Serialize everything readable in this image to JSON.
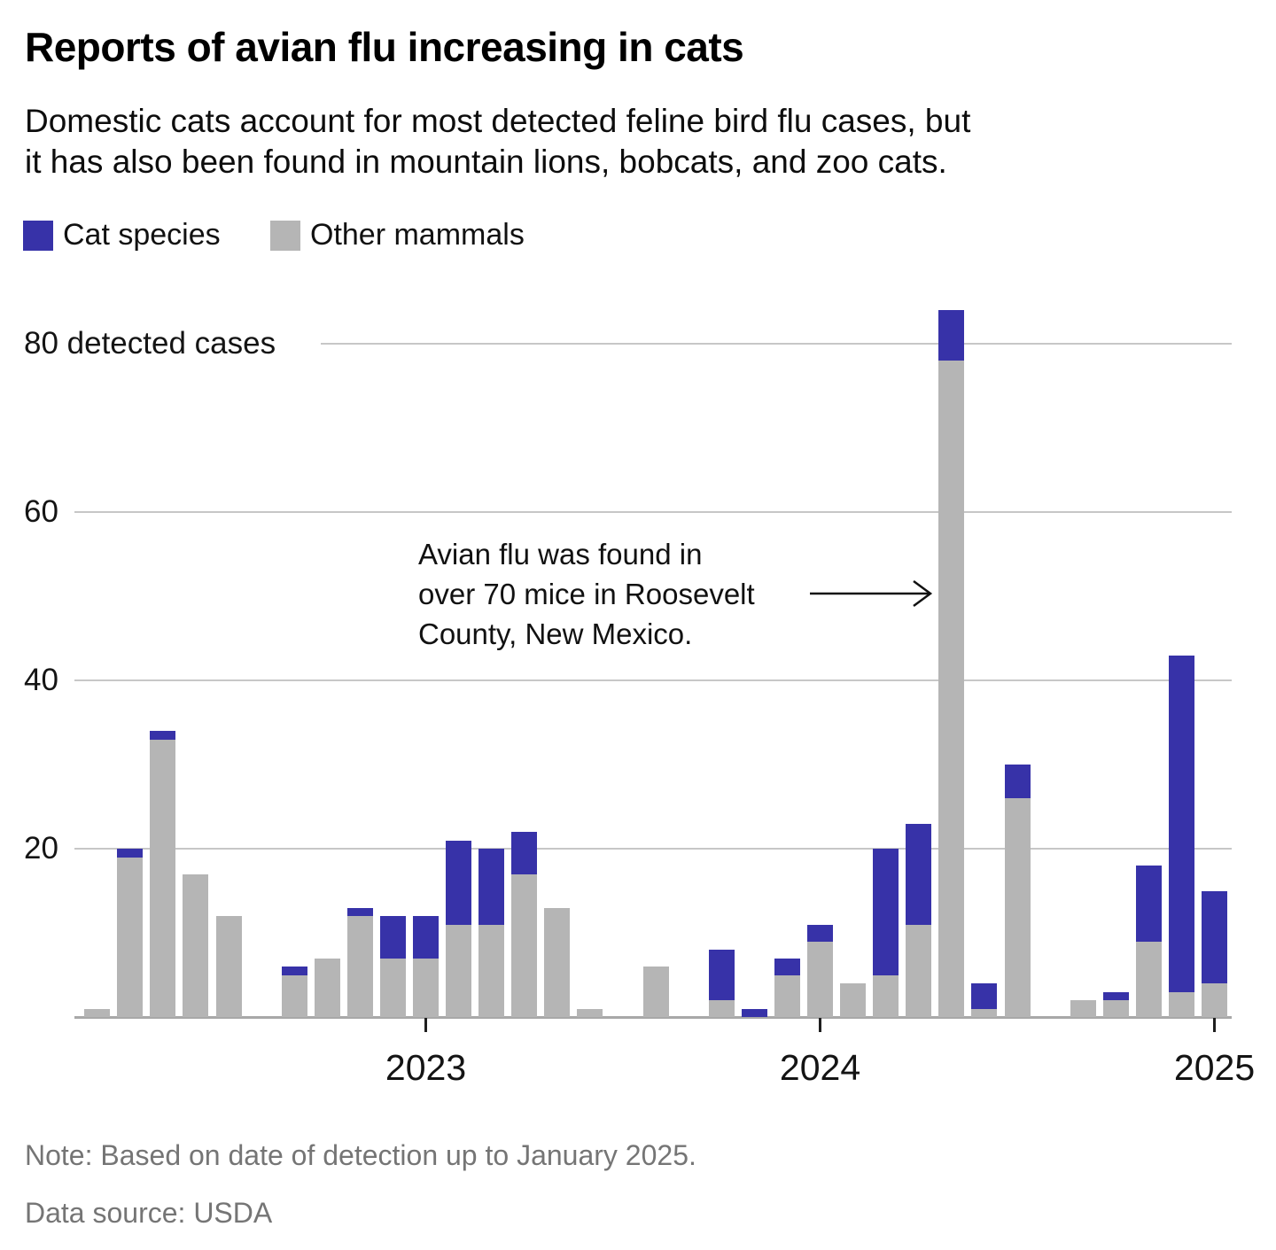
{
  "header": {
    "title": "Reports of avian flu increasing in cats",
    "subtitle_line1": "Domestic cats account for most detected feline bird flu cases, but",
    "subtitle_line2": "it has also been found in mountain lions, bobcats, and zoo cats."
  },
  "legend": {
    "items": [
      {
        "label": "Cat species",
        "color": "#3732a8"
      },
      {
        "label": "Other mammals",
        "color": "#b5b5b5"
      }
    ]
  },
  "chart_data": {
    "type": "bar",
    "stacked": true,
    "title": "Reports of avian flu increasing in cats",
    "xlabel": "",
    "ylabel": "detected cases",
    "ylim": [
      0,
      88
    ],
    "grid": true,
    "legend_position": "top-left",
    "x": [
      "Mar 2022",
      "Apr 2022",
      "May 2022",
      "Jun 2022",
      "Jul 2022",
      "Aug 2022",
      "Sep 2022",
      "Oct 2022",
      "Nov 2022",
      "Dec 2022",
      "Jan 2023",
      "Feb 2023",
      "Mar 2023",
      "Apr 2023",
      "May 2023",
      "Jun 2023",
      "Jul 2023",
      "Aug 2023",
      "Sep 2023",
      "Oct 2023",
      "Nov 2023",
      "Dec 2023",
      "Jan 2024",
      "Feb 2024",
      "Mar 2024",
      "Apr 2024",
      "May 2024",
      "Jun 2024",
      "Jul 2024",
      "Aug 2024",
      "Sep 2024",
      "Oct 2024",
      "Nov 2024",
      "Dec 2024",
      "Jan 2025"
    ],
    "series": [
      {
        "name": "Cat species",
        "color": "#3732a8",
        "values": [
          0,
          1,
          1,
          0,
          0,
          0,
          1,
          0,
          1,
          5,
          5,
          10,
          9,
          5,
          0,
          0,
          0,
          0,
          0,
          6,
          1,
          2,
          2,
          0,
          15,
          12,
          6,
          3,
          4,
          0,
          0,
          1,
          9,
          40,
          11
        ]
      },
      {
        "name": "Other mammals",
        "color": "#b5b5b5",
        "values": [
          1,
          19,
          33,
          17,
          12,
          0,
          5,
          7,
          12,
          7,
          7,
          11,
          11,
          17,
          13,
          1,
          0,
          6,
          0,
          2,
          0,
          5,
          9,
          4,
          5,
          11,
          78,
          1,
          26,
          0,
          2,
          2,
          9,
          3,
          4
        ]
      }
    ],
    "yticks": [
      {
        "value": 20,
        "label": "20"
      },
      {
        "value": 40,
        "label": "40"
      },
      {
        "value": 60,
        "label": "60"
      },
      {
        "value": 80,
        "label": "80 detected cases"
      }
    ],
    "xticks": [
      {
        "label": "2023",
        "month": "Jan 2023"
      },
      {
        "label": "2024",
        "month": "Jan 2024"
      },
      {
        "label": "2025",
        "month": "Jan 2025"
      }
    ],
    "annotation": {
      "lines": [
        "Avian flu was found in",
        "over 70 mice in Roosevelt",
        "County, New Mexico."
      ],
      "target_month": "May 2024"
    }
  },
  "notes": {
    "note": "Note: Based on date of detection up to January 2025.",
    "source": "Data source: USDA"
  }
}
